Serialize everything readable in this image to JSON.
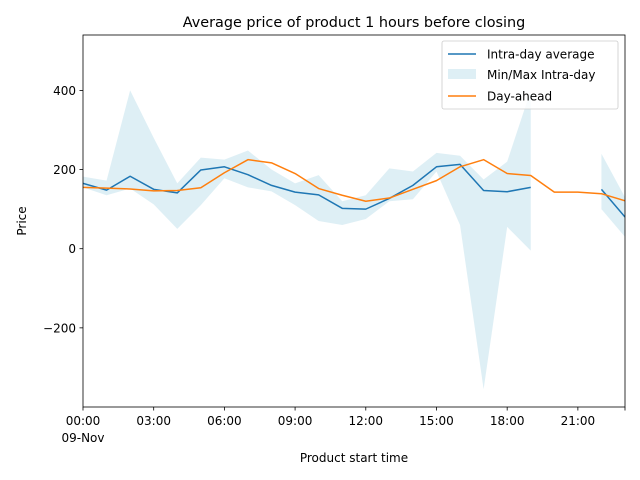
{
  "chart_data": {
    "type": "line",
    "title": "Average price of product 1 hours before closing",
    "xlabel": "Product start time",
    "ylabel": "Price",
    "x": [
      0,
      1,
      2,
      3,
      4,
      5,
      6,
      7,
      8,
      9,
      10,
      11,
      12,
      13,
      14,
      15,
      16,
      17,
      18,
      19,
      20,
      21,
      22,
      23
    ],
    "xlim": [
      0,
      23
    ],
    "ylim": [
      -400,
      540
    ],
    "x_ticks": [
      {
        "value": 0,
        "label": "00:00",
        "sublabel": "09-Nov"
      },
      {
        "value": 3,
        "label": "03:00"
      },
      {
        "value": 6,
        "label": "06:00"
      },
      {
        "value": 9,
        "label": "09:00"
      },
      {
        "value": 12,
        "label": "12:00"
      },
      {
        "value": 15,
        "label": "15:00"
      },
      {
        "value": 18,
        "label": "18:00"
      },
      {
        "value": 21,
        "label": "21:00"
      },
      {
        "value": 23,
        "label": ""
      }
    ],
    "y_ticks": [
      {
        "value": -200,
        "label": "−200"
      },
      {
        "value": 0,
        "label": "0"
      },
      {
        "value": 200,
        "label": "200"
      },
      {
        "value": 400,
        "label": "400"
      }
    ],
    "legend_position": "top-right",
    "grid": false,
    "series": [
      {
        "name": "Intra-day average",
        "kind": "line",
        "color": "#1f77b4",
        "values": [
          165,
          148,
          183,
          150,
          141,
          199,
          207,
          187,
          160,
          143,
          136,
          102,
          100,
          127,
          160,
          207,
          213,
          147,
          144,
          155,
          null,
          null,
          150,
          80
        ]
      },
      {
        "name": "Min/Max Intra-day",
        "kind": "band",
        "color": "#add8e6",
        "opacity": 0.4,
        "min": [
          155,
          135,
          152,
          112,
          50,
          110,
          178,
          155,
          145,
          110,
          70,
          60,
          75,
          120,
          125,
          195,
          60,
          -355,
          55,
          -5,
          null,
          null,
          100,
          30
        ],
        "max": [
          182,
          172,
          400,
          280,
          165,
          230,
          225,
          248,
          200,
          165,
          186,
          120,
          135,
          203,
          195,
          242,
          235,
          175,
          220,
          400,
          null,
          null,
          240,
          130
        ]
      },
      {
        "name": "Day-ahead",
        "kind": "line",
        "color": "#ff7f0e",
        "values": [
          155,
          153,
          151,
          146,
          147,
          154,
          192,
          225,
          217,
          190,
          152,
          135,
          120,
          128,
          150,
          172,
          207,
          225,
          190,
          185,
          143,
          143,
          139,
          121
        ]
      }
    ]
  }
}
